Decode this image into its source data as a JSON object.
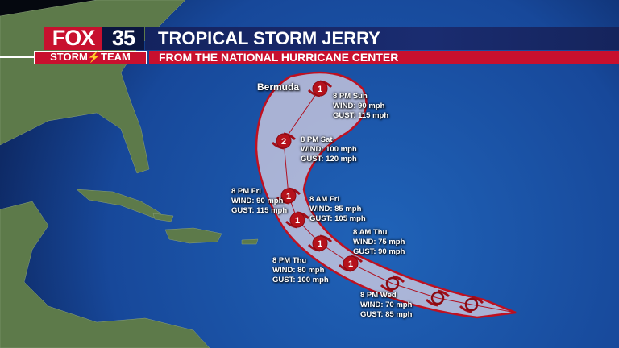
{
  "header": {
    "logo_brand": "FOX",
    "logo_number": "35",
    "logo_team": "STORM⚡TEAM",
    "title": "TROPICAL STORM JERRY",
    "subtitle": "FROM THE NATIONAL HURRICANE CENTER"
  },
  "map": {
    "place_label": "Bermuda",
    "colors": {
      "cone": "#c01020",
      "marker": "#b5121b",
      "ocean": "#1a4fa0"
    },
    "forecast_points": [
      {
        "time": "8 PM Sun",
        "wind": "WIND: 90 mph",
        "gust": "GUST: 115 mph",
        "category": "1"
      },
      {
        "time": "8 PM Sat",
        "wind": "WIND: 100 mph",
        "gust": "GUST: 120 mph",
        "category": "2"
      },
      {
        "time": "8 PM Fri",
        "wind": "WIND: 90 mph",
        "gust": "GUST: 115 mph",
        "category": "1"
      },
      {
        "time": "8 AM Fri",
        "wind": "WIND: 85 mph",
        "gust": "GUST: 105 mph",
        "category": "1"
      },
      {
        "time": "8 AM Thu",
        "wind": "WIND: 75 mph",
        "gust": "GUST: 90 mph",
        "category": "1"
      },
      {
        "time": "8 PM Thu",
        "wind": "WIND: 80 mph",
        "gust": "GUST: 100 mph",
        "category": "1"
      },
      {
        "time": "8 PM Wed",
        "wind": "WIND: 70 mph",
        "gust": "GUST: 85 mph",
        "category": "TS"
      }
    ]
  }
}
